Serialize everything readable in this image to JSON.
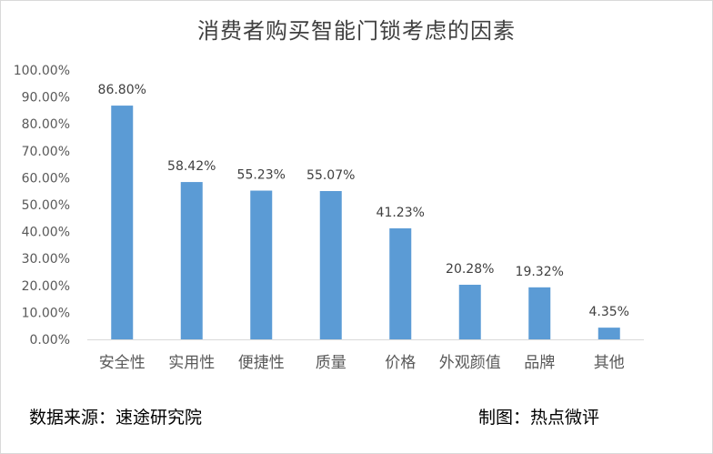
{
  "chart_data": {
    "type": "bar",
    "title": "消费者购买智能门锁考虑的因素",
    "categories": [
      "安全性",
      "实用性",
      "便捷性",
      "质量",
      "价格",
      "外观颜值",
      "品牌",
      "其他"
    ],
    "values": [
      86.8,
      58.42,
      55.23,
      55.07,
      41.23,
      20.28,
      19.32,
      4.35
    ],
    "data_labels": [
      "86.80%",
      "58.42%",
      "55.23%",
      "55.07%",
      "41.23%",
      "20.28%",
      "19.32%",
      "4.35%"
    ],
    "y_ticks": [
      "0.00%",
      "10.00%",
      "20.00%",
      "30.00%",
      "40.00%",
      "50.00%",
      "60.00%",
      "70.00%",
      "80.00%",
      "90.00%",
      "100.00%"
    ],
    "ylim": [
      0,
      100
    ],
    "grid": false,
    "legend": "none",
    "bar_color": "#5b9bd5",
    "xlabel": "",
    "ylabel": ""
  },
  "footer": {
    "source": "数据来源：速途研究院",
    "credit": "制图：热点微评"
  }
}
